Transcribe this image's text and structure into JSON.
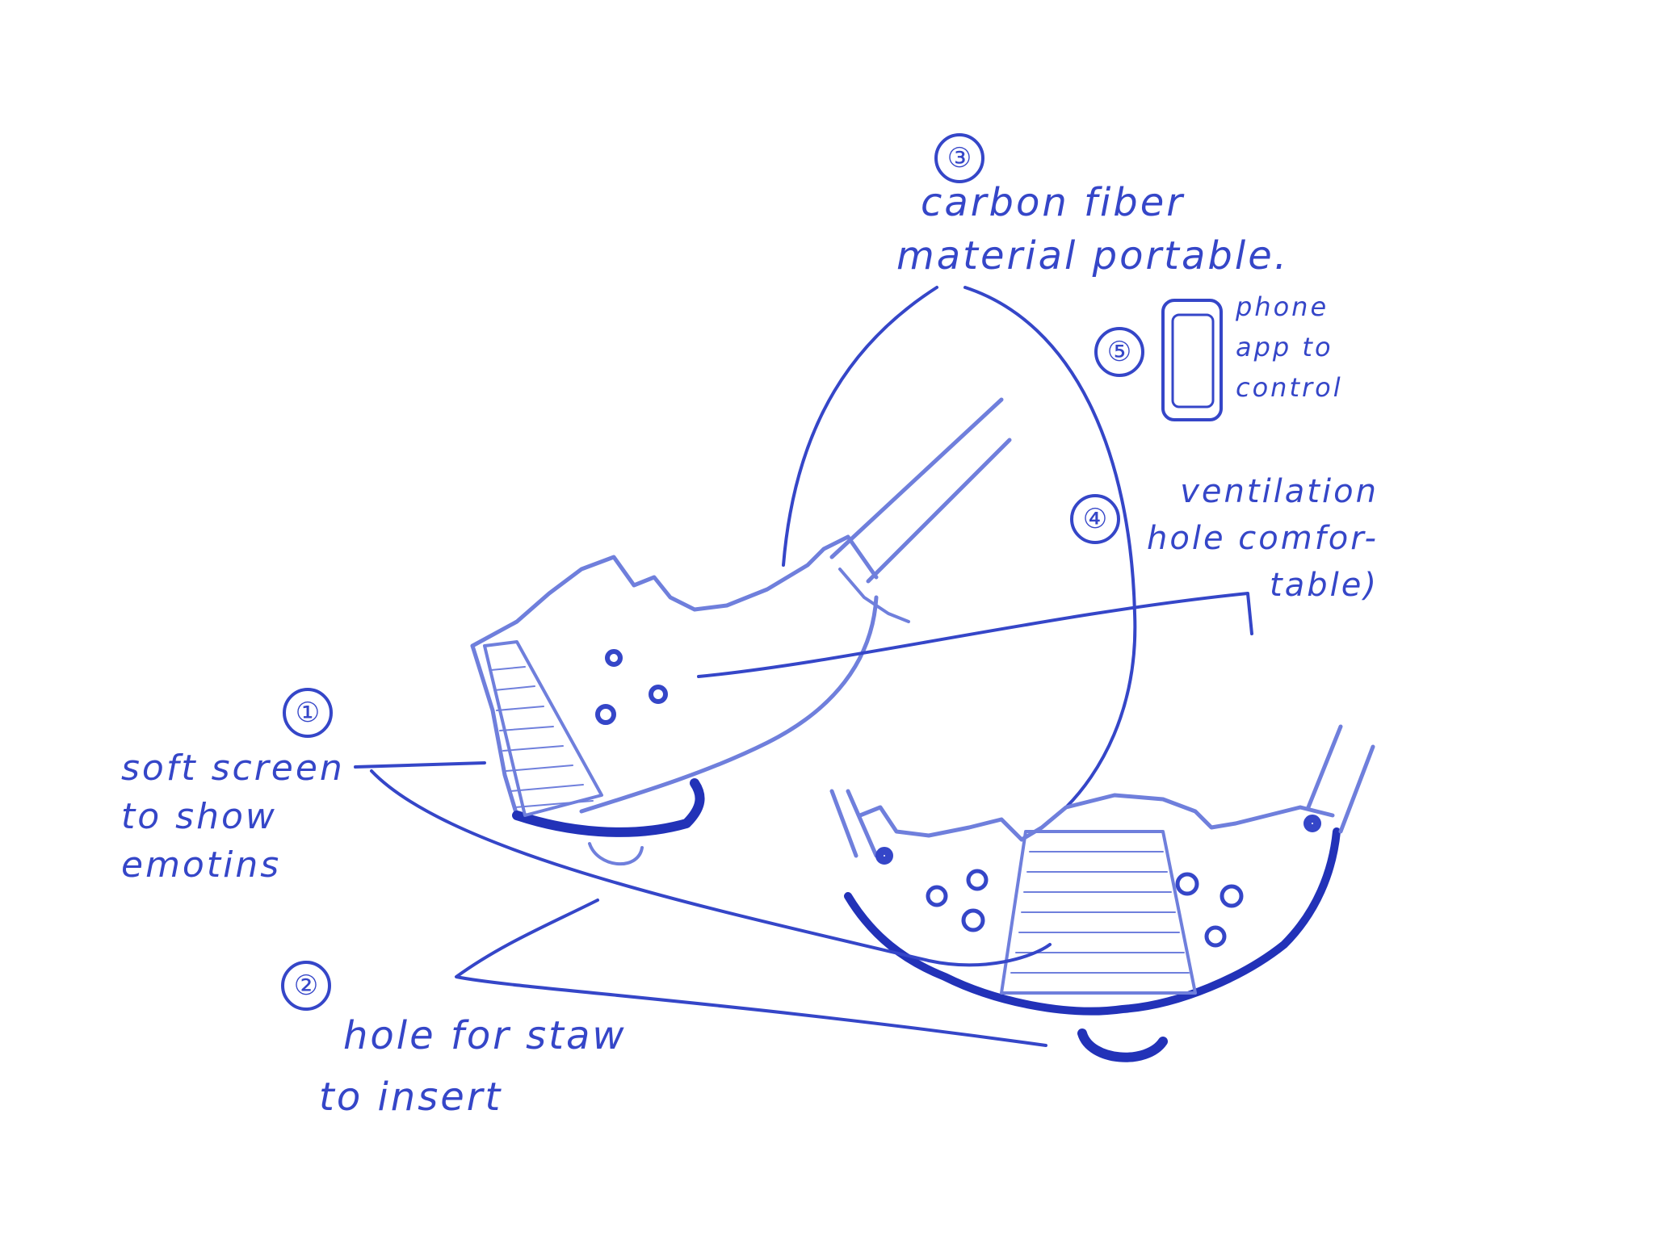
{
  "annotations": [
    {
      "number": "①",
      "lines": [
        "soft screen",
        "to show",
        "emotins"
      ]
    },
    {
      "number": "②",
      "lines": [
        "hole for staw",
        "to insert"
      ]
    },
    {
      "number": "③",
      "lines": [
        "carbon fiber",
        "material portable."
      ]
    },
    {
      "number": "④",
      "lines": [
        "ventilation",
        "hole comfor-",
        "table)"
      ]
    },
    {
      "number": "⑤",
      "lines": [
        "phone",
        "app to",
        "control"
      ]
    }
  ],
  "colors": {
    "ink": "#3546c8",
    "paper": "#ffffff"
  },
  "icons": [
    "phone-icon"
  ]
}
